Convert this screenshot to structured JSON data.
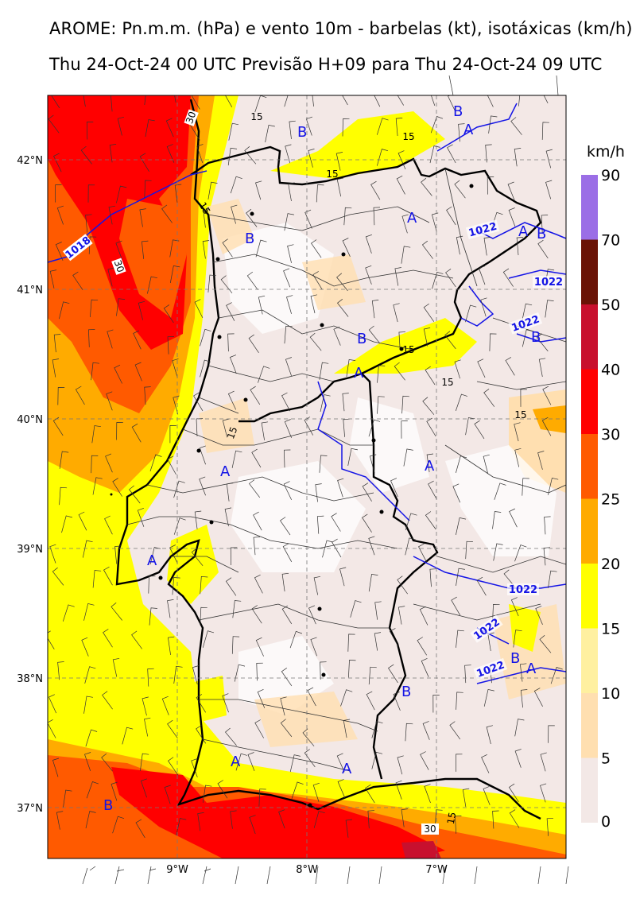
{
  "title_line1": "AROME: Pn.m.m. (hPa) e vento 10m - barbelas (kt), isotáxicas (km/h)",
  "title_line2": "Thu 24-Oct-24 00 UTC Previsão H+09 para Thu 24-Oct-24 09 UTC",
  "axes": {
    "lat_ticks": [
      "42°N",
      "41°N",
      "40°N",
      "39°N",
      "38°N",
      "37°N"
    ],
    "lon_ticks": [
      "9°W",
      "8°W",
      "7°W"
    ]
  },
  "colorbar": {
    "unit": "km/h",
    "levels": [
      "90",
      "70",
      "50",
      "40",
      "30",
      "25",
      "20",
      "15",
      "10",
      "5",
      "0"
    ],
    "colors": [
      "#9b6ee6",
      "#6a1306",
      "#c8102e",
      "#ff0000",
      "#ff5a00",
      "#ffab00",
      "#ffff00",
      "#fff0a0",
      "#ffdfb0",
      "#f3e8e6"
    ]
  },
  "pressure_labels": {
    "isobars": [
      "1018",
      "1022",
      "1022",
      "1022",
      "1022",
      "1022",
      "1022"
    ],
    "highs_lows": [
      "B",
      "B",
      "B",
      "A",
      "A",
      "B",
      "B",
      "A",
      "B",
      "A",
      "A",
      "A",
      "B",
      "A",
      "B",
      "A",
      "A",
      "B"
    ]
  },
  "isotach_labels": [
    "30",
    "15",
    "15",
    "15",
    "15",
    "30",
    "15",
    "15",
    "15",
    "15",
    "30",
    "15"
  ]
}
